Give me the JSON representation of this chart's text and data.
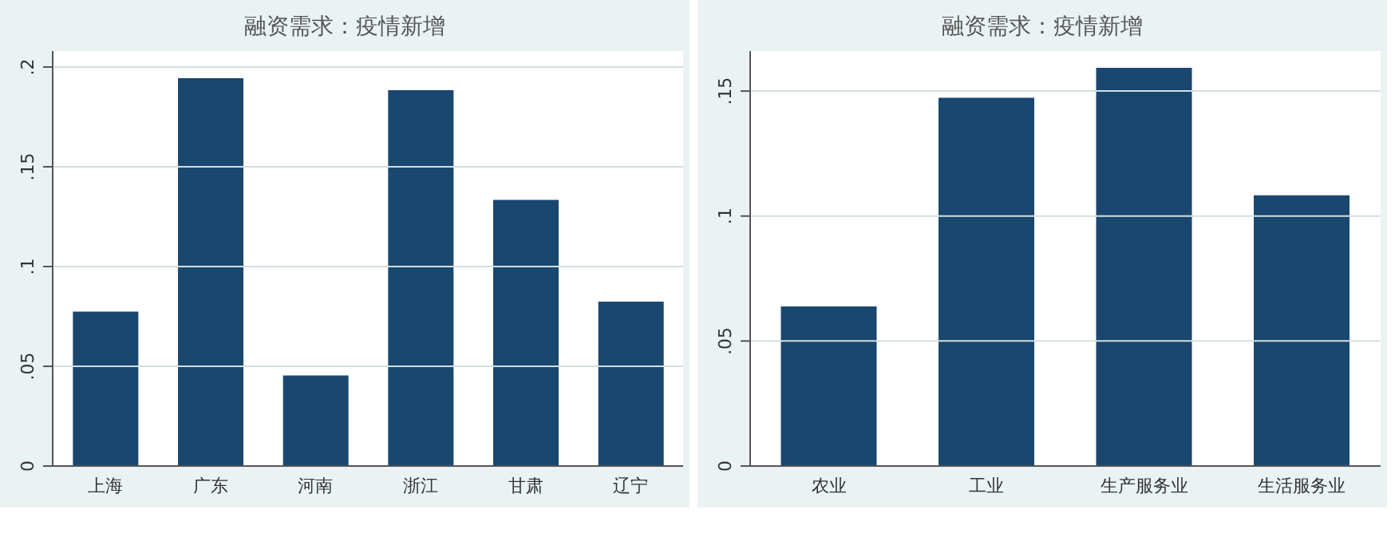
{
  "chart_data": [
    {
      "type": "bar",
      "title": "融资需求：疫情新增",
      "categories": [
        "上海",
        "广东",
        "河南",
        "浙江",
        "甘肃",
        "辽宁"
      ],
      "values": [
        0.077,
        0.194,
        0.045,
        0.188,
        0.133,
        0.082
      ],
      "color": "#1a476f",
      "ylim": [
        0,
        0.208
      ],
      "yticks": [
        {
          "value": 0,
          "label": "0"
        },
        {
          "value": 0.05,
          "label": ".05"
        },
        {
          "value": 0.1,
          "label": ".1"
        },
        {
          "value": 0.15,
          "label": ".15"
        },
        {
          "value": 0.2,
          "label": ".2"
        }
      ],
      "grid": "y"
    },
    {
      "type": "bar",
      "title": "融资需求：疫情新增",
      "categories": [
        "农业",
        "工业",
        "生产服务业",
        "生活服务业"
      ],
      "values": [
        0.0635,
        0.147,
        0.159,
        0.108
      ],
      "color": "#1a476f",
      "ylim": [
        0,
        0.166
      ],
      "yticks": [
        {
          "value": 0,
          "label": "0"
        },
        {
          "value": 0.05,
          "label": ".05"
        },
        {
          "value": 0.1,
          "label": ".1"
        },
        {
          "value": 0.15,
          "label": ".15"
        }
      ],
      "grid": "y"
    }
  ]
}
